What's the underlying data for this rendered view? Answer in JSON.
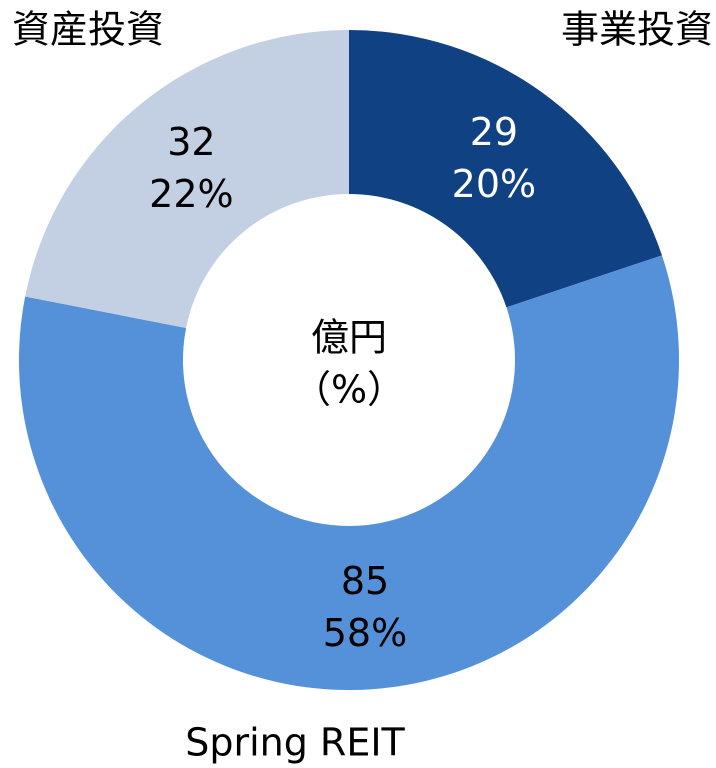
{
  "chart_data": {
    "type": "donut",
    "categories": [
      "事業投資",
      "Spring REIT",
      "資産投資"
    ],
    "values": [
      29,
      85,
      32
    ],
    "shares": {
      "values": [
        20,
        58,
        22
      ],
      "value_labels": [
        "20%",
        "58%",
        "22%"
      ]
    },
    "colors": [
      "#0f4183",
      "#5591d9",
      "#c3cfe2"
    ],
    "label_colors": [
      "#ffffff",
      "#000000",
      "#000000"
    ],
    "center_label": [
      "億円",
      "（%）"
    ]
  }
}
